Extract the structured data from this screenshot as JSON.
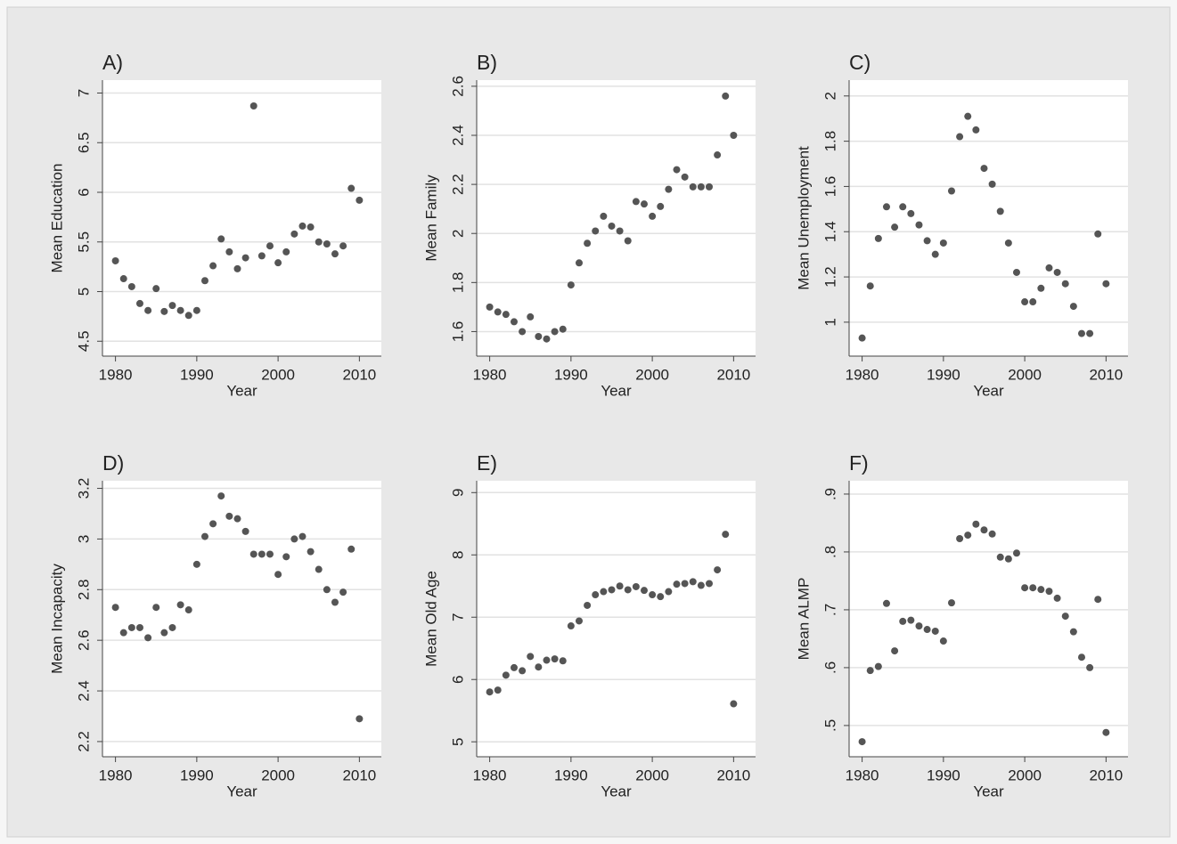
{
  "chart_data": [
    {
      "type": "scatter",
      "title": "A)",
      "xlabel": "Year",
      "ylabel": "Mean Education",
      "color": "#555555",
      "grid": true,
      "x": [
        1980,
        1981,
        1982,
        1983,
        1984,
        1985,
        1986,
        1987,
        1988,
        1989,
        1990,
        1991,
        1992,
        1993,
        1994,
        1995,
        1996,
        1997,
        1998,
        1999,
        2000,
        2001,
        2002,
        2003,
        2004,
        2005,
        2006,
        2007,
        2008,
        2009,
        2010
      ],
      "values": [
        5.31,
        5.13,
        5.05,
        4.88,
        4.81,
        5.03,
        4.8,
        4.86,
        4.81,
        4.76,
        4.81,
        5.11,
        5.26,
        5.53,
        5.4,
        5.23,
        5.34,
        6.87,
        5.36,
        5.46,
        5.29,
        5.4,
        5.58,
        5.66,
        5.65,
        5.5,
        5.48,
        5.38,
        5.46,
        6.04,
        5.92
      ],
      "xlim": [
        1978.4,
        2012.7
      ],
      "xticks": [
        1980,
        1990,
        2000,
        2010
      ],
      "ylim": [
        4.35,
        7.13
      ],
      "yticks": [
        4.5,
        5,
        5.5,
        6,
        6.5,
        7
      ]
    },
    {
      "type": "scatter",
      "title": "B)",
      "xlabel": "Year",
      "ylabel": "Mean Family",
      "color": "#555555",
      "grid": true,
      "x": [
        1980,
        1981,
        1982,
        1983,
        1984,
        1985,
        1986,
        1987,
        1988,
        1989,
        1990,
        1991,
        1992,
        1993,
        1994,
        1995,
        1996,
        1997,
        1998,
        1999,
        2000,
        2001,
        2002,
        2003,
        2004,
        2005,
        2006,
        2007,
        2008,
        2009,
        2010
      ],
      "values": [
        1.7,
        1.68,
        1.67,
        1.64,
        1.6,
        1.66,
        1.58,
        1.57,
        1.6,
        1.61,
        1.79,
        1.88,
        1.96,
        2.01,
        2.07,
        2.03,
        2.01,
        1.97,
        2.13,
        2.12,
        2.07,
        2.11,
        2.18,
        2.26,
        2.23,
        2.19,
        2.19,
        2.19,
        2.32,
        2.56,
        2.4
      ],
      "xlim": [
        1978.4,
        2012.7
      ],
      "xticks": [
        1980,
        1990,
        2000,
        2010
      ],
      "ylim": [
        1.5,
        2.625
      ],
      "yticks": [
        1.6,
        1.8,
        2,
        2.2,
        2.4,
        2.6
      ]
    },
    {
      "type": "scatter",
      "title": "C)",
      "xlabel": "Year",
      "ylabel": "Mean Unemployment",
      "color": "#555555",
      "grid": true,
      "x": [
        1980,
        1981,
        1982,
        1983,
        1984,
        1985,
        1986,
        1987,
        1988,
        1989,
        1990,
        1991,
        1992,
        1993,
        1994,
        1995,
        1996,
        1997,
        1998,
        1999,
        2000,
        2001,
        2002,
        2003,
        2004,
        2005,
        2006,
        2007,
        2008,
        2009,
        2010
      ],
      "values": [
        0.93,
        1.16,
        1.37,
        1.51,
        1.42,
        1.51,
        1.48,
        1.43,
        1.36,
        1.3,
        1.35,
        1.58,
        1.82,
        1.91,
        1.85,
        1.68,
        1.61,
        1.49,
        1.35,
        1.22,
        1.09,
        1.09,
        1.15,
        1.24,
        1.22,
        1.17,
        1.07,
        0.95,
        0.95,
        1.39,
        1.17
      ],
      "xlim": [
        1978.4,
        2012.7
      ],
      "xticks": [
        1980,
        1990,
        2000,
        2010
      ],
      "ylim": [
        0.85,
        2.07
      ],
      "yticks": [
        1,
        1.2,
        1.4,
        1.6,
        1.8,
        2
      ]
    },
    {
      "type": "scatter",
      "title": "D)",
      "xlabel": "Year",
      "ylabel": "Mean Incapacity",
      "color": "#555555",
      "grid": true,
      "x": [
        1980,
        1981,
        1982,
        1983,
        1984,
        1985,
        1986,
        1987,
        1988,
        1989,
        1990,
        1991,
        1992,
        1993,
        1994,
        1995,
        1996,
        1997,
        1998,
        1999,
        2000,
        2001,
        2002,
        2003,
        2004,
        2005,
        2006,
        2007,
        2008,
        2009,
        2010
      ],
      "values": [
        2.73,
        2.63,
        2.65,
        2.65,
        2.61,
        2.73,
        2.63,
        2.65,
        2.74,
        2.72,
        2.9,
        3.01,
        3.06,
        3.17,
        3.09,
        3.08,
        3.03,
        2.94,
        2.94,
        2.94,
        2.86,
        2.93,
        3.0,
        3.01,
        2.95,
        2.88,
        2.8,
        2.75,
        2.79,
        2.96,
        2.29
      ],
      "xlim": [
        1978.4,
        2012.7
      ],
      "xticks": [
        1980,
        1990,
        2000,
        2010
      ],
      "ylim": [
        2.14,
        3.23
      ],
      "yticks": [
        2.2,
        2.4,
        2.6,
        2.8,
        3,
        3.2
      ]
    },
    {
      "type": "scatter",
      "title": "E)",
      "xlabel": "Year",
      "ylabel": "Mean Old Age",
      "color": "#555555",
      "grid": true,
      "x": [
        1980,
        1981,
        1982,
        1983,
        1984,
        1985,
        1986,
        1987,
        1988,
        1989,
        1990,
        1991,
        1992,
        1993,
        1994,
        1995,
        1996,
        1997,
        1998,
        1999,
        2000,
        2001,
        2002,
        2003,
        2004,
        2005,
        2006,
        2007,
        2008,
        2009,
        2010
      ],
      "values": [
        5.8,
        5.83,
        6.07,
        6.19,
        6.14,
        6.37,
        6.2,
        6.31,
        6.33,
        6.3,
        6.86,
        6.94,
        7.19,
        7.36,
        7.41,
        7.44,
        7.5,
        7.44,
        7.49,
        7.43,
        7.36,
        7.33,
        7.41,
        7.53,
        7.54,
        7.57,
        7.51,
        7.54,
        7.76,
        8.33,
        5.61
      ],
      "xlim": [
        1978.4,
        2012.7
      ],
      "xticks": [
        1980,
        1990,
        2000,
        2010
      ],
      "ylim": [
        4.76,
        9.19
      ],
      "yticks": [
        5,
        6,
        7,
        8,
        9
      ]
    },
    {
      "type": "scatter",
      "title": "F)",
      "xlabel": "Year",
      "ylabel": "Mean ALMP",
      "color": "#555555",
      "grid": true,
      "x": [
        1980,
        1981,
        1982,
        1983,
        1984,
        1985,
        1986,
        1987,
        1988,
        1989,
        1990,
        1991,
        1992,
        1993,
        1994,
        1995,
        1996,
        1997,
        1998,
        1999,
        2000,
        2001,
        2002,
        2003,
        2004,
        2005,
        2006,
        2007,
        2008,
        2009,
        2010
      ],
      "values": [
        0.472,
        0.595,
        0.602,
        0.711,
        0.629,
        0.68,
        0.682,
        0.672,
        0.666,
        0.663,
        0.646,
        0.712,
        0.823,
        0.829,
        0.848,
        0.838,
        0.831,
        0.791,
        0.788,
        0.798,
        0.738,
        0.738,
        0.735,
        0.732,
        0.72,
        0.689,
        0.662,
        0.618,
        0.6,
        0.718,
        0.488
      ],
      "xlim": [
        1978.4,
        2012.7
      ],
      "xticks": [
        1980,
        1990,
        2000,
        2010
      ],
      "ylim": [
        0.446,
        0.923
      ],
      "yticks": [
        {
          "value": 0.5,
          "label": ".5"
        },
        {
          "value": 0.6,
          "label": ".6"
        },
        {
          "value": 0.7,
          "label": ".7"
        },
        {
          "value": 0.8,
          "label": ".8"
        },
        {
          "value": 0.9,
          "label": ".9"
        }
      ]
    }
  ]
}
